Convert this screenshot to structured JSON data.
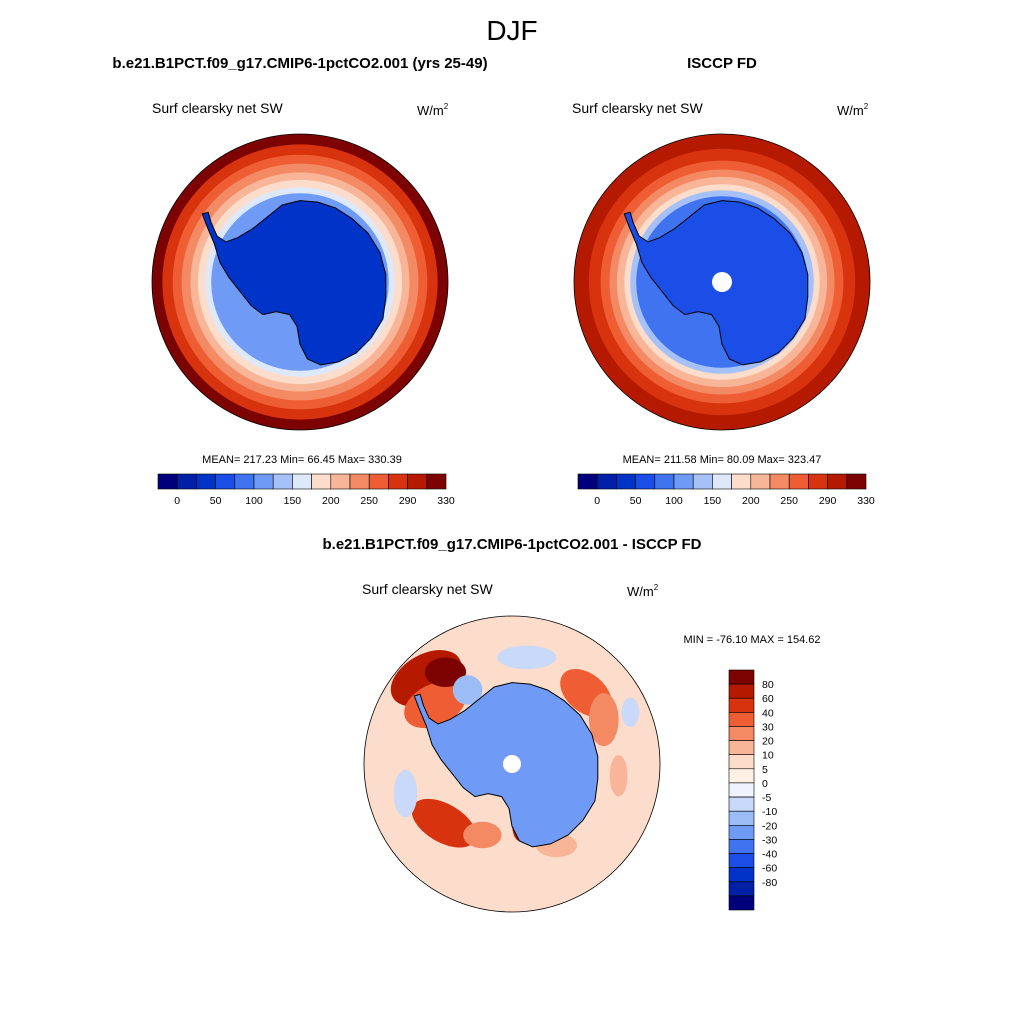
{
  "figure": {
    "season": "DJF",
    "background": "#ffffff"
  },
  "colors": {
    "abs_levels": [
      "#00007d",
      "#0020a8",
      "#0033c8",
      "#1a4ee6",
      "#3f73f0",
      "#6f9af5",
      "#a6c1f7",
      "#dde9fb",
      "#fcdccb",
      "#f8b598",
      "#f48a64",
      "#ee5d34",
      "#d8330f",
      "#b51a00",
      "#7d0303"
    ],
    "diff_levels": [
      "#7d0303",
      "#b51a00",
      "#d8330f",
      "#ee5d34",
      "#f48a64",
      "#f8b598",
      "#fcdccb",
      "#fff1e4",
      "#eef3fd",
      "#c8d9f9",
      "#9bbcf4",
      "#6f9af5",
      "#3f73f0",
      "#1a4ee6",
      "#0033c8",
      "#0020a8",
      "#00007d"
    ],
    "coastline": "#000000"
  },
  "chart_data": [
    {
      "type": "heatmap",
      "panel": "model",
      "title": "b.e21.B1PCT.f09_g17.CMIP6-1pctCO2.001 (yrs 25-49)",
      "left_label": "Surf clearsky net SW",
      "units_base": "W/m",
      "units_sup": "2",
      "stats": {
        "mean": "217.23",
        "min": "66.45",
        "max": "330.39"
      },
      "stats_text": "MEAN= 217.23  Min=  66.45  Max= 330.39",
      "colorbar_labels": [
        "0",
        "50",
        "100",
        "150",
        "200",
        "250",
        "290",
        "330"
      ],
      "rings": [
        {
          "r": 1.0,
          "value": 330
        },
        {
          "r": 0.93,
          "value": 300
        },
        {
          "r": 0.86,
          "value": 280
        },
        {
          "r": 0.8,
          "value": 260
        },
        {
          "r": 0.74,
          "value": 240
        },
        {
          "r": 0.69,
          "value": 210
        },
        {
          "r": 0.64,
          "value": 180
        },
        {
          "r": 0.6,
          "value": 140
        }
      ],
      "interior_value": 60,
      "polar_hole": false
    },
    {
      "type": "heatmap",
      "panel": "obs",
      "title": "ISCCP FD",
      "left_label": "Surf clearsky net SW",
      "units_base": "W/m",
      "units_sup": "2",
      "stats": {
        "mean": "211.58",
        "min": "80.09",
        "max": "323.47"
      },
      "stats_text": "MEAN= 211.58  Min=  80.09  Max= 323.47",
      "colorbar_labels": [
        "0",
        "50",
        "100",
        "150",
        "200",
        "250",
        "290",
        "330"
      ],
      "rings": [
        {
          "r": 1.0,
          "value": 320
        },
        {
          "r": 0.9,
          "value": 300
        },
        {
          "r": 0.82,
          "value": 280
        },
        {
          "r": 0.76,
          "value": 260
        },
        {
          "r": 0.71,
          "value": 240
        },
        {
          "r": 0.66,
          "value": 200
        },
        {
          "r": 0.62,
          "value": 160
        },
        {
          "r": 0.58,
          "value": 120
        }
      ],
      "interior_value": 90,
      "polar_hole": true
    },
    {
      "type": "heatmap",
      "panel": "diff",
      "title": "b.e21.B1PCT.f09_g17.CMIP6-1pctCO2.001 - ISCCP FD",
      "left_label": "Surf clearsky net SW",
      "units_base": "W/m",
      "units_sup": "2",
      "stats": {
        "min": "-76.10",
        "max": "154.62"
      },
      "stats_text": "MIN = -76.10 MAX = 154.62",
      "colorbar_labels": [
        "80",
        "60",
        "40",
        "30",
        "20",
        "10",
        "5",
        "0",
        "-5",
        "-10",
        "-20",
        "-30",
        "-40",
        "-60",
        "-80"
      ],
      "background_value": 5,
      "interior_value": -30,
      "polar_hole": true
    }
  ]
}
